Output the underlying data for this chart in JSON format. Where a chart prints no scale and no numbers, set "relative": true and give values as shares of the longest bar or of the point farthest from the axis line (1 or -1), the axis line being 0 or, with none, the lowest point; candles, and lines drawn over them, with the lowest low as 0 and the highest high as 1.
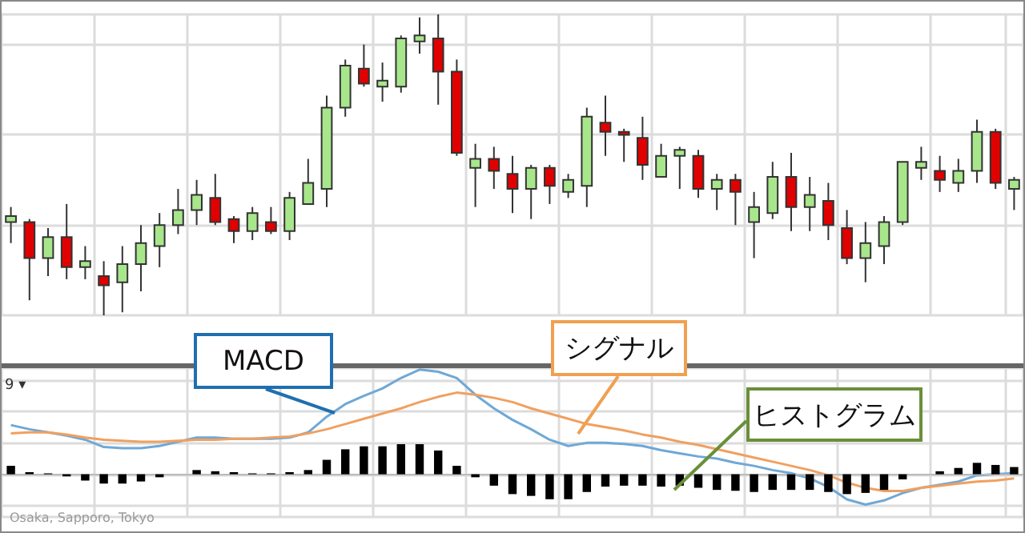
{
  "chart_data": [
    {
      "type": "candlestick",
      "relative": true,
      "grid": true,
      "categories": [
        null,
        null,
        null,
        null,
        null,
        null,
        null,
        null,
        null,
        null,
        null,
        null,
        null,
        null,
        null,
        null,
        null,
        null,
        null,
        null,
        null,
        null,
        null,
        null,
        null,
        null,
        null,
        null,
        null,
        null,
        null,
        null,
        null,
        null,
        null,
        null,
        null,
        null,
        null,
        null,
        null,
        null,
        null,
        null,
        null,
        null,
        null,
        null,
        null,
        null,
        null,
        null,
        null,
        null,
        null
      ],
      "ohlc": [
        [
          0.31,
          0.36,
          0.24,
          0.33
        ],
        [
          0.31,
          0.32,
          0.05,
          0.19
        ],
        [
          0.19,
          0.29,
          0.13,
          0.26
        ],
        [
          0.26,
          0.37,
          0.12,
          0.16
        ],
        [
          0.16,
          0.23,
          0.12,
          0.18
        ],
        [
          0.13,
          0.18,
          0,
          0.1
        ],
        [
          0.11,
          0.23,
          0.01,
          0.17
        ],
        [
          0.17,
          0.3,
          0.08,
          0.24
        ],
        [
          0.23,
          0.34,
          0.16,
          0.3
        ],
        [
          0.3,
          0.42,
          0.27,
          0.35
        ],
        [
          0.35,
          0.45,
          0.3,
          0.4
        ],
        [
          0.39,
          0.47,
          0.3,
          0.31
        ],
        [
          0.32,
          0.33,
          0.24,
          0.28
        ],
        [
          0.28,
          0.36,
          0.25,
          0.34
        ],
        [
          0.31,
          0.36,
          0.27,
          0.28
        ],
        [
          0.28,
          0.41,
          0.25,
          0.39
        ],
        [
          0.37,
          0.52,
          0.37,
          0.44
        ],
        [
          0.42,
          0.73,
          0.36,
          0.69
        ],
        [
          0.69,
          0.85,
          0.66,
          0.83
        ],
        [
          0.82,
          0.9,
          0.76,
          0.77
        ],
        [
          0.76,
          0.84,
          0.71,
          0.78
        ],
        [
          0.76,
          0.93,
          0.74,
          0.92
        ],
        [
          0.91,
          0.99,
          0.87,
          0.93
        ],
        [
          0.92,
          1,
          0.7,
          0.81
        ],
        [
          0.81,
          0.85,
          0.53,
          0.54
        ],
        [
          0.49,
          0.57,
          0.36,
          0.52
        ],
        [
          0.52,
          0.56,
          0.42,
          0.48
        ],
        [
          0.47,
          0.53,
          0.34,
          0.42
        ],
        [
          0.42,
          0.5,
          0.32,
          0.49
        ],
        [
          0.49,
          0.5,
          0.37,
          0.43
        ],
        [
          0.41,
          0.47,
          0.39,
          0.45
        ],
        [
          0.43,
          0.69,
          0.36,
          0.66
        ],
        [
          0.64,
          0.73,
          0.53,
          0.61
        ],
        [
          0.61,
          0.62,
          0.51,
          0.6
        ],
        [
          0.59,
          0.66,
          0.45,
          0.5
        ],
        [
          0.46,
          0.57,
          0.46,
          0.53
        ],
        [
          0.53,
          0.56,
          0.42,
          0.55
        ],
        [
          0.53,
          0.55,
          0.39,
          0.42
        ],
        [
          0.42,
          0.47,
          0.35,
          0.45
        ],
        [
          0.45,
          0.47,
          0.3,
          0.41
        ],
        [
          0.31,
          0.41,
          0.19,
          0.36
        ],
        [
          0.34,
          0.51,
          0.32,
          0.46
        ],
        [
          0.46,
          0.54,
          0.28,
          0.36
        ],
        [
          0.36,
          0.46,
          0.28,
          0.4
        ],
        [
          0.38,
          0.44,
          0.25,
          0.3
        ],
        [
          0.29,
          0.35,
          0.17,
          0.19
        ],
        [
          0.19,
          0.31,
          0.11,
          0.24
        ],
        [
          0.23,
          0.33,
          0.17,
          0.31
        ],
        [
          0.31,
          0.51,
          0.3,
          0.51
        ],
        [
          0.49,
          0.56,
          0.45,
          0.51
        ],
        [
          0.48,
          0.53,
          0.41,
          0.45
        ],
        [
          0.44,
          0.52,
          0.41,
          0.48
        ],
        [
          0.48,
          0.65,
          0.44,
          0.61
        ],
        [
          0.61,
          0.62,
          0.42,
          0.44
        ],
        [
          0.42,
          0.46,
          0.35,
          0.45
        ]
      ]
    },
    {
      "type": "line",
      "relative": true,
      "grid": true,
      "categories": [
        null,
        null,
        null,
        null,
        null,
        null,
        null,
        null,
        null,
        null,
        null,
        null,
        null,
        null,
        null,
        null,
        null,
        null,
        null,
        null,
        null,
        null,
        null,
        null,
        null,
        null,
        null,
        null,
        null,
        null,
        null,
        null,
        null,
        null,
        null,
        null,
        null,
        null,
        null,
        null,
        null,
        null,
        null,
        null,
        null,
        null,
        null,
        null,
        null,
        null,
        null,
        null,
        null,
        null,
        null
      ],
      "annotations": [
        "9 ▾",
        "Osaka, Sapporo, Tokyo"
      ],
      "series": [
        {
          "name": "MACD",
          "color": "#6fa8d6",
          "values": [
            0.47,
            0.43,
            0.4,
            0.37,
            0.33,
            0.26,
            0.25,
            0.25,
            0.27,
            0.31,
            0.35,
            0.35,
            0.34,
            0.34,
            0.34,
            0.35,
            0.4,
            0.55,
            0.67,
            0.75,
            0.82,
            0.92,
            1,
            0.98,
            0.92,
            0.76,
            0.63,
            0.52,
            0.43,
            0.33,
            0.27,
            0.3,
            0.3,
            0.29,
            0.27,
            0.23,
            0.2,
            0.17,
            0.15,
            0.11,
            0.08,
            0.04,
            0.01,
            -0.04,
            -0.12,
            -0.24,
            -0.29,
            -0.25,
            -0.18,
            -0.13,
            -0.1,
            -0.07,
            -0.01,
            0,
            0.01
          ]
        },
        {
          "name": "シグナル",
          "color": "#f0a060",
          "values": [
            0.39,
            0.4,
            0.4,
            0.38,
            0.35,
            0.33,
            0.32,
            0.31,
            0.31,
            0.32,
            0.33,
            0.33,
            0.34,
            0.34,
            0.35,
            0.36,
            0.39,
            0.43,
            0.48,
            0.53,
            0.58,
            0.63,
            0.69,
            0.74,
            0.78,
            0.76,
            0.73,
            0.69,
            0.63,
            0.58,
            0.53,
            0.48,
            0.45,
            0.42,
            0.38,
            0.35,
            0.31,
            0.28,
            0.24,
            0.2,
            0.16,
            0.12,
            0.08,
            0.04,
            -0.01,
            -0.08,
            -0.13,
            -0.16,
            -0.16,
            -0.13,
            -0.11,
            -0.09,
            -0.07,
            -0.06,
            -0.04
          ]
        }
      ]
    },
    {
      "type": "bar",
      "relative": true,
      "categories": [
        null,
        null,
        null,
        null,
        null,
        null,
        null,
        null,
        null,
        null,
        null,
        null,
        null,
        null,
        null,
        null,
        null,
        null,
        null,
        null,
        null,
        null,
        null,
        null,
        null,
        null,
        null,
        null,
        null,
        null,
        null,
        null,
        null,
        null,
        null,
        null,
        null,
        null,
        null,
        null,
        null,
        null,
        null,
        null,
        null,
        null,
        null,
        null,
        null,
        null,
        null,
        null,
        null,
        null,
        null
      ],
      "series": [
        {
          "name": "ヒストグラム",
          "color": "#000000",
          "values": [
            0.28,
            0.07,
            0.03,
            -0.07,
            -0.21,
            -0.31,
            -0.31,
            -0.24,
            -0.1,
            null,
            0.14,
            0.1,
            0.07,
            0.03,
            0.03,
            0.07,
            0.14,
            0.48,
            0.83,
            0.93,
            0.93,
            1,
            1,
            0.79,
            0.28,
            -0.1,
            -0.38,
            -0.66,
            -0.72,
            -0.83,
            -0.83,
            -0.59,
            -0.41,
            -0.38,
            -0.38,
            -0.41,
            -0.38,
            -0.45,
            -0.52,
            -0.55,
            -0.59,
            -0.52,
            -0.52,
            -0.52,
            -0.59,
            -0.66,
            -0.62,
            -0.52,
            -0.17,
            null,
            0.1,
            0.21,
            0.38,
            0.31,
            0.24
          ]
        }
      ]
    }
  ]
}
